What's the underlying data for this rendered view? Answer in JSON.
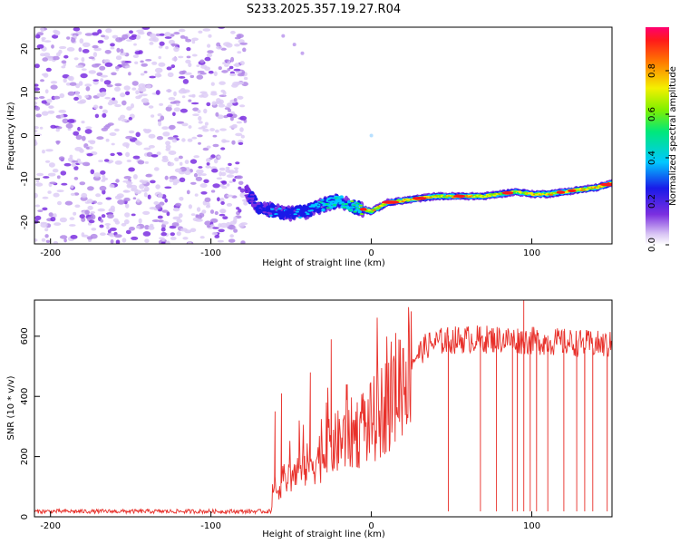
{
  "title": "S233.2025.357.19.27.R04",
  "chart_data": [
    {
      "type": "heatmap",
      "name": "spectrogram",
      "xlabel": "Height of straight line (km)",
      "ylabel": "Frequency (Hz)",
      "xlim": [
        -210,
        150
      ],
      "ylim": [
        -25,
        25
      ],
      "xticks": [
        -200,
        -100,
        0,
        100
      ],
      "yticks": [
        -20,
        -10,
        0,
        10,
        20
      ],
      "colorbar": {
        "label": "Normalized spectral amplitude",
        "range": [
          0,
          1
        ],
        "ticks": [
          "0.0",
          "0.2",
          "0.4",
          "0.6",
          "0.8"
        ]
      },
      "noise_region": {
        "x_from": -210,
        "x_to": -78,
        "amplitude": 0.15
      },
      "signal_track": {
        "x": [
          -78,
          -70,
          -60,
          -50,
          -40,
          -30,
          -20,
          -10,
          0,
          10,
          20,
          30,
          40,
          50,
          60,
          70,
          80,
          90,
          100,
          110,
          120,
          130,
          140,
          150
        ],
        "freq": [
          -13,
          -16.5,
          -17.5,
          -18,
          -17.5,
          -16,
          -15,
          -16.5,
          -17.5,
          -15.5,
          -15,
          -14.5,
          -14,
          -14,
          -14,
          -14,
          -13.5,
          -13,
          -13.5,
          -13.5,
          -13,
          -12.5,
          -12,
          -11
        ],
        "amplitude": [
          0.25,
          0.35,
          0.4,
          0.35,
          0.45,
          0.5,
          0.55,
          0.6,
          0.75,
          0.9,
          0.85,
          0.9,
          0.8,
          0.8,
          0.85,
          0.75,
          0.8,
          0.7,
          0.85,
          0.8,
          0.75,
          0.8,
          0.85,
          0.95
        ]
      }
    },
    {
      "type": "line",
      "name": "snr",
      "xlabel": "Height of straight line (km)",
      "ylabel": "SNR (10 * v/v)",
      "xlim": [
        -210,
        150
      ],
      "ylim": [
        0,
        720
      ],
      "xticks": [
        -200,
        -100,
        0,
        100
      ],
      "yticks": [
        0,
        200,
        400,
        600
      ],
      "color": "#e8302a",
      "baseline": {
        "x_from": -210,
        "x_to": -62,
        "value": 18,
        "noise": 7
      },
      "trend": {
        "x": [
          -62,
          -55,
          -45,
          -35,
          -25,
          -15,
          -5,
          5,
          15,
          25,
          35,
          45,
          60,
          80,
          100,
          120,
          150
        ],
        "y": [
          60,
          120,
          150,
          190,
          230,
          270,
          290,
          340,
          430,
          520,
          570,
          585,
          590,
          590,
          585,
          580,
          570
        ]
      },
      "spikes": [
        {
          "x": -60,
          "y": 350
        },
        {
          "x": -56,
          "y": 410
        },
        {
          "x": -45,
          "y": 320
        },
        {
          "x": -38,
          "y": 480
        },
        {
          "x": -25,
          "y": 590
        },
        {
          "x": -15,
          "y": 440
        },
        {
          "x": -5,
          "y": 320
        },
        {
          "x": 95,
          "y": 720
        }
      ],
      "dropouts": [
        48,
        68,
        78,
        88,
        91,
        95,
        99,
        103,
        110,
        120,
        128,
        133,
        138,
        147
      ]
    }
  ]
}
